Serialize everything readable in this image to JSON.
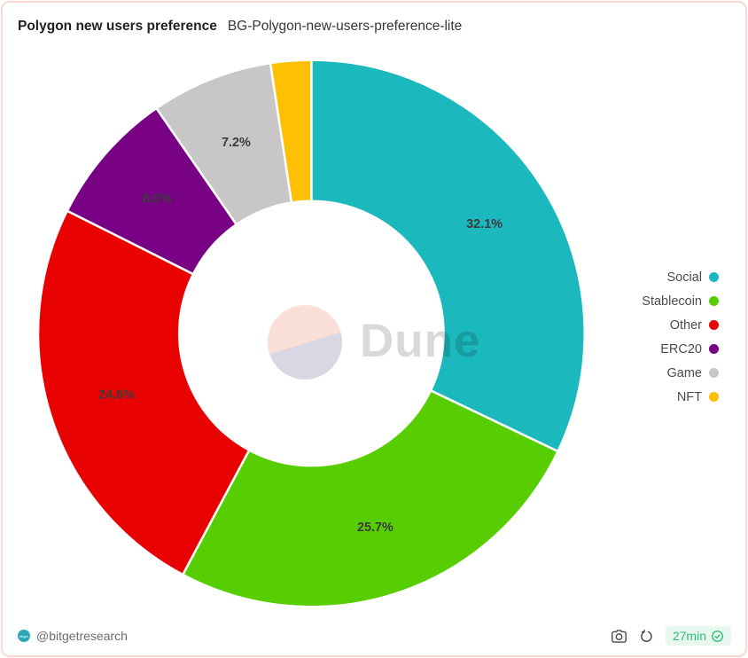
{
  "card": {
    "title": "Polygon new users preference",
    "subtitle": "BG-Polygon-new-users-preference-lite",
    "border_color": "#F9D9D2"
  },
  "chart_data": {
    "type": "pie",
    "subtype": "donut",
    "title": "Polygon new users preference",
    "start_angle_deg": 0,
    "direction": "clockwise",
    "categories": [
      "Social",
      "Stablecoin",
      "Other",
      "ERC20",
      "Game",
      "NFT"
    ],
    "values": [
      32.1,
      25.7,
      24.6,
      8.0,
      7.2,
      2.4
    ],
    "slice_labels": [
      "32.1%",
      "25.7%",
      "24.6%",
      "8.0%",
      "7.2%",
      ""
    ],
    "colors": [
      "#1BB9BD",
      "#56CE02",
      "#E80202",
      "#790184",
      "#C8C6C6",
      "#FFC003"
    ],
    "label_color": "#3C3C3C",
    "legend_position": "right",
    "grid": false
  },
  "watermark": {
    "text": "Dune",
    "logo_icon": "dune-logo-icon",
    "logo_top_color": "#FADFD8",
    "logo_bottom_color": "#D8D7E3"
  },
  "footer": {
    "handle": "@bitgetresearch",
    "avatar_icon": "bitget-logo-icon",
    "avatar_color": "#2BA8B5",
    "camera_icon": "camera-icon",
    "refresh_icon": "refresh-icon",
    "refresh_badge": {
      "text": "27min",
      "check_icon": "verified-check-icon",
      "text_color": "#2DBE76",
      "bg_color": "#E9F8EF"
    }
  }
}
